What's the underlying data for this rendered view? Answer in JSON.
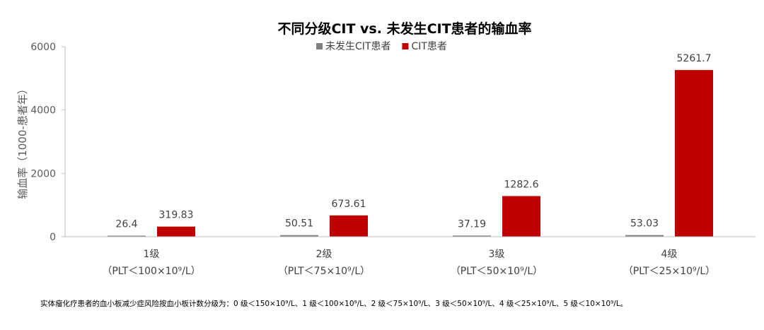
{
  "chart_data": {
    "type": "bar",
    "title": "不同分级CIT vs. 未发生CIT患者的输血率",
    "ylabel": "输血率（1000-患者年）",
    "xlabel": "",
    "ylim": [
      0,
      6000
    ],
    "yticks": [
      0,
      2000,
      4000,
      6000
    ],
    "categories": [
      "1级",
      "2级",
      "3级",
      "4级"
    ],
    "category_sublabels": [
      "（PLT＜100×10⁹/L）",
      "（PLT＜75×10⁹/L）",
      "（PLT＜50×10⁹/L）",
      "（PLT＜25×10⁹/L）"
    ],
    "series": [
      {
        "name": "未发生CIT患者",
        "color": "#808080",
        "values": [
          26.4,
          50.51,
          37.19,
          53.03
        ],
        "labels": [
          "26.4",
          "50.51",
          "37.19",
          "53.03"
        ]
      },
      {
        "name": "CIT患者",
        "color": "#C00000",
        "values": [
          319.83,
          673.61,
          1282.6,
          5261.7
        ],
        "labels": [
          "319.83",
          "673.61",
          "1282.6",
          "5261.7"
        ]
      }
    ],
    "legend_position": "top",
    "grid": false
  },
  "footnote": "实体瘤化疗患者的血小板减少症风险按血小板计数分级为：0 级＜150×10⁹/L、1 级＜100×10⁹/L、2 级＜75×10⁹/L、3 级＜50×10⁹/L、4 级＜25×10⁹/L、5 级＜10×10⁹/L。"
}
